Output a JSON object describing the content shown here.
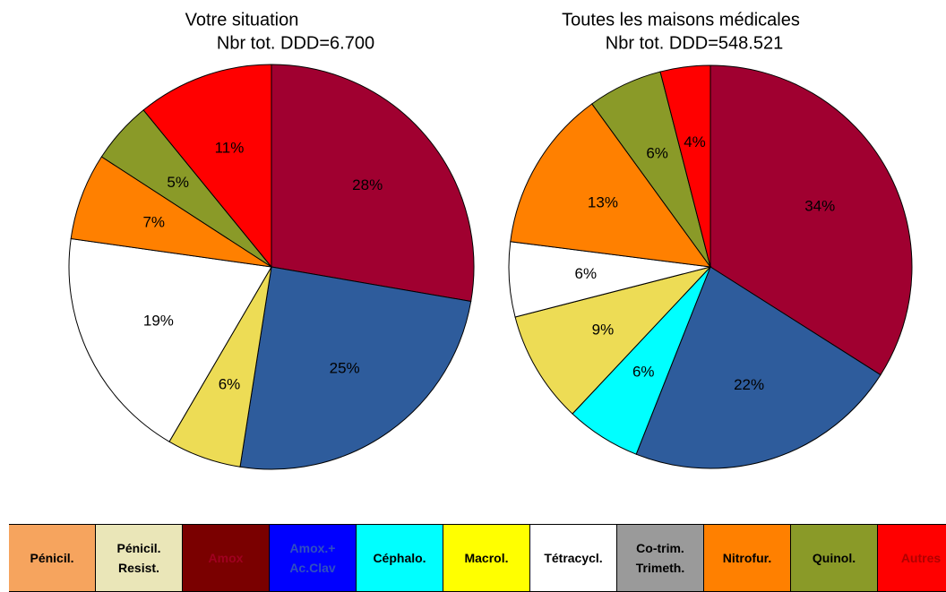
{
  "chart_data": [
    {
      "type": "pie",
      "title": "Votre situation",
      "subtitle": "Nbr tot. DDD=6.700",
      "values": [
        28,
        25,
        6,
        19,
        7,
        5,
        11
      ],
      "value_labels": [
        "28%",
        "25%",
        "6%",
        "19%",
        "7%",
        "5%",
        "11%"
      ],
      "colors": [
        "#a00030",
        "#2e5c9c",
        "#eddc55",
        "#ffffff",
        "#ff8000",
        "#8a9a28",
        "#ff0000"
      ]
    },
    {
      "type": "pie",
      "title": "Toutes les maisons médicales",
      "subtitle": "Nbr tot. DDD=548.521",
      "values": [
        34,
        22,
        6,
        9,
        6,
        13,
        6,
        4
      ],
      "value_labels": [
        "34%",
        "22%",
        "6%",
        "9%",
        "6%",
        "13%",
        "6%",
        "4%"
      ],
      "colors": [
        "#a00030",
        "#2e5c9c",
        "#00ffff",
        "#eddc55",
        "#ffffff",
        "#ff8000",
        "#8a9a28",
        "#ff0000"
      ]
    }
  ],
  "legend": {
    "items": [
      {
        "lines": [
          "Pénicil."
        ],
        "color": "#f6a45e",
        "text_color": "#000000"
      },
      {
        "lines": [
          "Pénicil.",
          "Resist."
        ],
        "color": "#eae6b8",
        "text_color": "#000000"
      },
      {
        "lines": [
          "Amox"
        ],
        "color": "#7a0000",
        "text_color": "#a00020"
      },
      {
        "lines": [
          "Amox.+",
          "Ac.Clav"
        ],
        "color": "#0000ff",
        "text_color": "#3050c0"
      },
      {
        "lines": [
          "Céphalo."
        ],
        "color": "#00ffff",
        "text_color": "#000000"
      },
      {
        "lines": [
          "Macrol."
        ],
        "color": "#ffff00",
        "text_color": "#000000"
      },
      {
        "lines": [
          "Tétracycl."
        ],
        "color": "#ffffff",
        "text_color": "#000000"
      },
      {
        "lines": [
          "Co-trim.",
          "Trimeth."
        ],
        "color": "#9a9a9a",
        "text_color": "#000000"
      },
      {
        "lines": [
          "Nitrofur."
        ],
        "color": "#ff8000",
        "text_color": "#000000"
      },
      {
        "lines": [
          "Quinol."
        ],
        "color": "#8a9a28",
        "text_color": "#000000"
      },
      {
        "lines": [
          "Autres"
        ],
        "color": "#ff0000",
        "text_color": "#b00000"
      }
    ]
  }
}
